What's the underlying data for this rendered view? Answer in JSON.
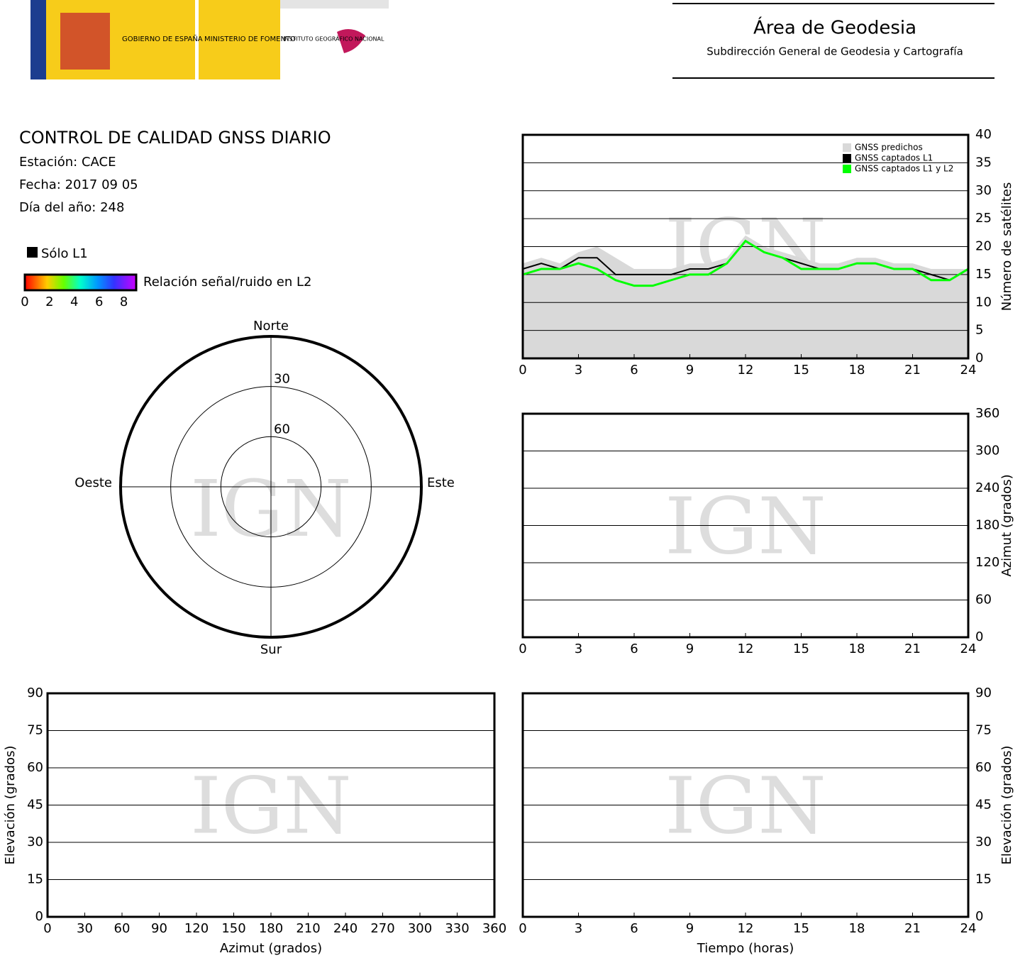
{
  "header": {
    "org1": "GOBIERNO DE ESPAÑA",
    "org2": "MINISTERIO DE FOMENTO",
    "org3": "INSTITUTO GEOGRÁFICO NACIONAL",
    "title": "Área de Geodesia",
    "subtitle": "Subdirección General de Geodesia y Cartografía"
  },
  "info": {
    "title": "CONTROL DE CALIDAD GNSS DIARIO",
    "station": "Estación: CACE",
    "date": "Fecha: 2017 09 05",
    "doy": "Día del año: 248"
  },
  "legend": {
    "l1": "Sólo L1",
    "colorbar_label": "Relación señal/ruido en L2",
    "colorbar_range": [
      0,
      9
    ],
    "colorbar_ticks": [
      0,
      2,
      4,
      6,
      8
    ]
  },
  "watermark": "IGN",
  "chart_data": [
    {
      "type": "line",
      "ylabel": "Número de satélites",
      "xlim": [
        0,
        24
      ],
      "ylim": [
        0,
        40
      ],
      "xticks": [
        0,
        3,
        6,
        9,
        12,
        15,
        18,
        21,
        24
      ],
      "yticks": [
        0,
        5,
        10,
        15,
        20,
        25,
        30,
        35,
        40
      ],
      "grid": true,
      "legend": "top-right",
      "x": [
        0,
        1,
        2,
        3,
        4,
        5,
        6,
        7,
        8,
        9,
        10,
        11,
        12,
        13,
        14,
        15,
        16,
        17,
        18,
        19,
        20,
        21,
        22,
        23,
        24
      ],
      "series": [
        {
          "name": "GNSS predichos",
          "color": "#d9d9d9",
          "values": [
            17,
            18,
            17,
            19,
            20,
            18,
            16,
            16,
            16,
            17,
            17,
            18,
            22,
            20,
            19,
            18,
            17,
            17,
            18,
            18,
            17,
            17,
            16,
            16,
            16
          ]
        },
        {
          "name": "GNSS captados L1",
          "color": "#000000",
          "values": [
            16,
            17,
            16,
            18,
            18,
            15,
            15,
            15,
            15,
            16,
            16,
            17,
            21,
            19,
            18,
            17,
            16,
            16,
            17,
            17,
            16,
            16,
            15,
            14,
            16
          ]
        },
        {
          "name": "GNSS captados L1 y L2",
          "color": "#00ff00",
          "values": [
            15,
            16,
            16,
            17,
            16,
            14,
            13,
            13,
            14,
            15,
            15,
            17,
            21,
            19,
            18,
            16,
            16,
            16,
            17,
            17,
            16,
            16,
            14,
            14,
            16
          ]
        }
      ]
    },
    {
      "type": "track",
      "ylabel": "Azimut (grados)",
      "xlim": [
        0,
        24
      ],
      "ylim": [
        0,
        360
      ],
      "xticks": [
        0,
        3,
        6,
        9,
        12,
        15,
        18,
        21,
        24
      ],
      "yticks": [
        0,
        60,
        120,
        180,
        240,
        300,
        360
      ],
      "grid": true
    },
    {
      "type": "polar",
      "rlim": [
        90,
        0
      ],
      "rticks": [
        30,
        60
      ],
      "directions": [
        "Norte",
        "Este",
        "Sur",
        "Oeste"
      ]
    },
    {
      "type": "track",
      "ylabel": "Elevación (grados)",
      "xlabel": "Azimut (grados)",
      "xlim": [
        0,
        360
      ],
      "ylim": [
        0,
        90
      ],
      "xticks": [
        0,
        30,
        60,
        90,
        120,
        150,
        180,
        210,
        240,
        270,
        300,
        330,
        360
      ],
      "yticks": [
        0,
        15,
        30,
        45,
        60,
        75,
        90
      ],
      "grid": true
    },
    {
      "type": "track",
      "ylabel": "Elevación (grados)",
      "xlabel": "Tiempo (horas)",
      "xlim": [
        0,
        24
      ],
      "ylim": [
        0,
        90
      ],
      "xticks": [
        0,
        3,
        6,
        9,
        12,
        15,
        18,
        21,
        24
      ],
      "yticks": [
        0,
        15,
        30,
        45,
        60,
        75,
        90
      ],
      "grid": true
    }
  ]
}
